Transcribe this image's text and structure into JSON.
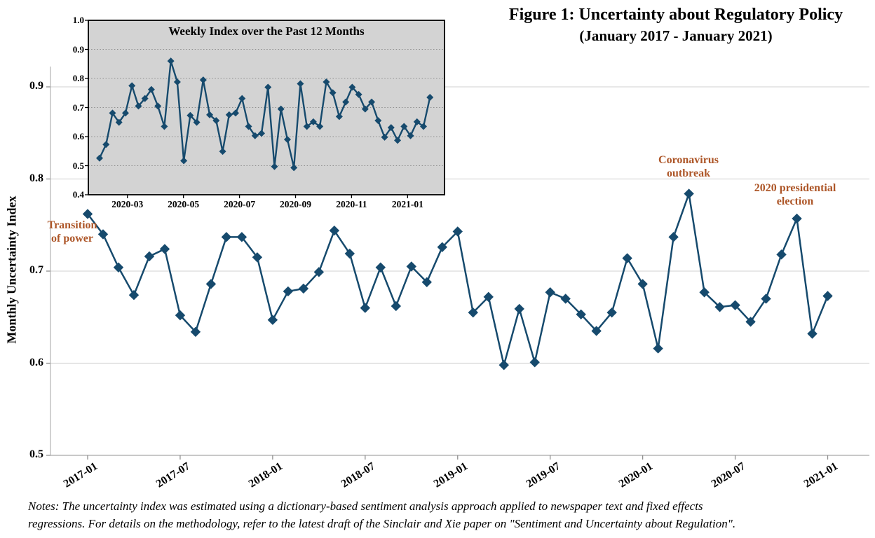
{
  "figure": {
    "title_line1": "Figure 1: Uncertainty about Regulatory Policy",
    "title_line2": "(January 2017 - January 2021)",
    "notes_line1": "Notes: The uncertainty index was estimated using a dictionary-based sentiment analysis approach applied to newspaper text and fixed effects",
    "notes_line2": "regressions. For details on the methodology, refer to the latest draft of the Sinclair and Xie paper on \"Sentiment and Uncertainty about Regulation\"."
  },
  "annotations": {
    "transition_line1": "Transition",
    "transition_line2": "of power",
    "coronavirus_line1": "Coronavirus",
    "coronavirus_line2": "outbreak",
    "election_line1": "2020 presidential",
    "election_line2": "election"
  },
  "colors": {
    "series": "#164a6d",
    "annotation": "#ad5628",
    "grid_main": "#d9d9d9",
    "spine": "#b5b5b5",
    "tick": "#8f8f8f",
    "inset_background": "#d3d3d3",
    "inset_grid": "#8f8f8f",
    "inset_frame": "#000000",
    "text": "#000000"
  },
  "chart_data": [
    {
      "type": "line",
      "name": "monthly_uncertainty_index",
      "ylabel": "Monthly Uncertainty Index",
      "xlabel": "",
      "marker": "diamond",
      "grid": "horizontal-solid",
      "ylim": [
        0.5,
        0.92
      ],
      "yticks": [
        0.9,
        0.8,
        0.7,
        0.6,
        0.5
      ],
      "xtick_labels": [
        "2017-01",
        "2017-07",
        "2018-01",
        "2018-07",
        "2019-01",
        "2019-07",
        "2020-01",
        "2020-07",
        "2021-01"
      ],
      "xtick_month_index": [
        0,
        6,
        12,
        18,
        24,
        30,
        36,
        42,
        48
      ],
      "x": [
        "2017-01",
        "2017-02",
        "2017-03",
        "2017-04",
        "2017-05",
        "2017-06",
        "2017-07",
        "2017-08",
        "2017-09",
        "2017-10",
        "2017-11",
        "2017-12",
        "2018-01",
        "2018-02",
        "2018-03",
        "2018-04",
        "2018-05",
        "2018-06",
        "2018-07",
        "2018-08",
        "2018-09",
        "2018-10",
        "2018-11",
        "2018-12",
        "2019-01",
        "2019-02",
        "2019-03",
        "2019-04",
        "2019-05",
        "2019-06",
        "2019-07",
        "2019-08",
        "2019-09",
        "2019-10",
        "2019-11",
        "2019-12",
        "2020-01",
        "2020-02",
        "2020-03",
        "2020-04",
        "2020-05",
        "2020-06",
        "2020-07",
        "2020-08",
        "2020-09",
        "2020-10",
        "2020-11",
        "2020-12",
        "2021-01"
      ],
      "values": [
        0.762,
        0.74,
        0.704,
        0.674,
        0.716,
        0.724,
        0.652,
        0.634,
        0.686,
        0.737,
        0.737,
        0.715,
        0.647,
        0.678,
        0.681,
        0.699,
        0.744,
        0.719,
        0.66,
        0.704,
        0.662,
        0.705,
        0.688,
        0.726,
        0.743,
        0.655,
        0.672,
        0.598,
        0.659,
        0.601,
        0.677,
        0.67,
        0.653,
        0.635,
        0.655,
        0.714,
        0.686,
        0.616,
        0.737,
        0.784,
        0.677,
        0.661,
        0.663,
        0.645,
        0.67,
        0.718,
        0.757,
        0.632,
        0.673
      ]
    },
    {
      "type": "line",
      "name": "weekly_uncertainty_index",
      "title": "Weekly Index over the Past 12 Months",
      "marker": "diamond",
      "grid": "horizontal-dotted",
      "ylim": [
        0.4,
        1.0
      ],
      "yticks": [
        1.0,
        0.9,
        0.8,
        0.7,
        0.6,
        0.5,
        0.4
      ],
      "xtick_labels": [
        "2020-03",
        "2020-05",
        "2020-07",
        "2020-09",
        "2020-11",
        "2021-01"
      ],
      "xtick_week_index": [
        4.3,
        12.95,
        21.6,
        30.25,
        38.9,
        47.55
      ],
      "x": [
        1,
        2,
        3,
        4,
        5,
        6,
        7,
        8,
        9,
        10,
        11,
        12,
        13,
        14,
        15,
        16,
        17,
        18,
        19,
        20,
        21,
        22,
        23,
        24,
        25,
        26,
        27,
        28,
        29,
        30,
        31,
        32,
        33,
        34,
        35,
        36,
        37,
        38,
        39,
        40,
        41,
        42,
        43,
        44,
        45,
        46,
        47,
        48,
        49,
        50,
        51,
        52
      ],
      "values": [
        0.526,
        0.573,
        0.681,
        0.649,
        0.681,
        0.775,
        0.705,
        0.731,
        0.762,
        0.705,
        0.635,
        0.86,
        0.788,
        0.517,
        0.673,
        0.649,
        0.795,
        0.675,
        0.655,
        0.549,
        0.675,
        0.681,
        0.731,
        0.635,
        0.603,
        0.611,
        0.77,
        0.497,
        0.695,
        0.59,
        0.493,
        0.782,
        0.635,
        0.651,
        0.635,
        0.788,
        0.751,
        0.669,
        0.719,
        0.77,
        0.745,
        0.695,
        0.719,
        0.655,
        0.598,
        0.631,
        0.587,
        0.635,
        0.603,
        0.651,
        0.635,
        0.735
      ]
    }
  ]
}
